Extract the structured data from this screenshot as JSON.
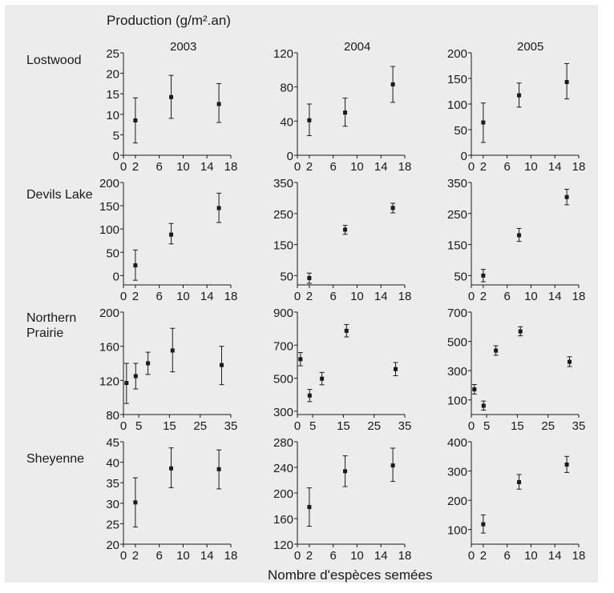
{
  "figure": {
    "ylabel": "Production (g/m².an)",
    "xlabel": "Nombre d'espèces semées",
    "years": [
      "2003",
      "2004",
      "2005"
    ],
    "sites": [
      "Lostwood",
      "Devils Lake",
      "Northern\nPrairie",
      "Sheyenne"
    ],
    "background": "#ececec",
    "point_color": "#1a1a1a"
  },
  "chart_data": [
    {
      "type": "scatter",
      "site": "Lostwood",
      "year": "2003",
      "xlim": [
        0,
        18
      ],
      "xticks": [
        0,
        2,
        6,
        10,
        14,
        18
      ],
      "ylim": [
        0,
        25
      ],
      "yticks": [
        0,
        5,
        10,
        15,
        20,
        25
      ],
      "x": [
        2,
        8,
        16
      ],
      "y": [
        8.5,
        14.2,
        12.5
      ],
      "yerr_low": [
        3,
        9,
        8
      ],
      "yerr_high": [
        14,
        19.5,
        17.5
      ]
    },
    {
      "type": "scatter",
      "site": "Lostwood",
      "year": "2004",
      "xlim": [
        0,
        18
      ],
      "xticks": [
        0,
        2,
        6,
        10,
        14,
        18
      ],
      "ylim": [
        0,
        120
      ],
      "yticks": [
        0,
        40,
        80,
        120
      ],
      "x": [
        2,
        8,
        16
      ],
      "y": [
        41,
        50,
        83
      ],
      "yerr_low": [
        23,
        34,
        62
      ],
      "yerr_high": [
        60,
        67,
        104
      ]
    },
    {
      "type": "scatter",
      "site": "Lostwood",
      "year": "2005",
      "xlim": [
        0,
        18
      ],
      "xticks": [
        0,
        2,
        6,
        10,
        14,
        18
      ],
      "ylim": [
        0,
        200
      ],
      "yticks": [
        0,
        50,
        100,
        150,
        200
      ],
      "x": [
        2,
        8,
        16
      ],
      "y": [
        64,
        117,
        143
      ],
      "yerr_low": [
        25,
        94,
        110
      ],
      "yerr_high": [
        102,
        141,
        179
      ]
    },
    {
      "type": "scatter",
      "site": "Devils Lake",
      "year": "2003",
      "xlim": [
        0,
        18
      ],
      "xticks": [
        0,
        2,
        6,
        10,
        14,
        18
      ],
      "ylim": [
        -20,
        200
      ],
      "yticks": [
        0,
        50,
        100,
        150,
        200
      ],
      "x": [
        2,
        8,
        16
      ],
      "y": [
        22,
        88,
        145
      ],
      "yerr_low": [
        -10,
        68,
        114
      ],
      "yerr_high": [
        55,
        112,
        177
      ]
    },
    {
      "type": "scatter",
      "site": "Devils Lake",
      "year": "2004",
      "xlim": [
        0,
        18
      ],
      "xticks": [
        0,
        2,
        6,
        10,
        14,
        18
      ],
      "ylim": [
        20,
        350
      ],
      "yticks": [
        50,
        150,
        250,
        350
      ],
      "x": [
        2,
        8,
        16
      ],
      "y": [
        42,
        198,
        268
      ],
      "yerr_low": [
        25,
        183,
        252
      ],
      "yerr_high": [
        58,
        212,
        283
      ]
    },
    {
      "type": "scatter",
      "site": "Devils Lake",
      "year": "2005",
      "xlim": [
        0,
        18
      ],
      "xticks": [
        0,
        2,
        6,
        10,
        14,
        18
      ],
      "ylim": [
        20,
        350
      ],
      "yticks": [
        50,
        150,
        250,
        350
      ],
      "x": [
        2,
        8,
        16
      ],
      "y": [
        50,
        180,
        303
      ],
      "yerr_low": [
        30,
        160,
        278
      ],
      "yerr_high": [
        70,
        202,
        328
      ]
    },
    {
      "type": "scatter",
      "site": "Northern Prairie",
      "year": "2003",
      "xlim": [
        0,
        35
      ],
      "xticks": [
        0,
        5,
        15,
        25,
        35
      ],
      "ylim": [
        80,
        200
      ],
      "yticks": [
        80,
        120,
        160,
        200
      ],
      "x": [
        1,
        4,
        8,
        16,
        32
      ],
      "y": [
        117,
        125,
        140,
        155,
        138
      ],
      "yerr_low": [
        93,
        110,
        127,
        130,
        115
      ],
      "yerr_high": [
        140,
        140,
        153,
        181,
        160
      ]
    },
    {
      "type": "scatter",
      "site": "Northern Prairie",
      "year": "2004",
      "xlim": [
        0,
        35
      ],
      "xticks": [
        0,
        5,
        15,
        25,
        35
      ],
      "ylim": [
        280,
        900
      ],
      "yticks": [
        300,
        500,
        700,
        900
      ],
      "x": [
        1,
        4,
        8,
        16,
        32
      ],
      "y": [
        615,
        395,
        497,
        787,
        555
      ],
      "yerr_low": [
        575,
        358,
        460,
        750,
        515
      ],
      "yerr_high": [
        655,
        432,
        535,
        825,
        595
      ]
    },
    {
      "type": "scatter",
      "site": "Northern Prairie",
      "year": "2005",
      "xlim": [
        0,
        35
      ],
      "xticks": [
        0,
        5,
        15,
        25,
        35
      ],
      "ylim": [
        0,
        700
      ],
      "yticks": [
        100,
        300,
        500,
        700
      ],
      "x": [
        1,
        4,
        8,
        16,
        32
      ],
      "y": [
        172,
        60,
        437,
        568,
        360
      ],
      "yerr_low": [
        140,
        30,
        405,
        538,
        328
      ],
      "yerr_high": [
        205,
        92,
        470,
        600,
        395
      ]
    },
    {
      "type": "scatter",
      "site": "Sheyenne",
      "year": "2003",
      "xlim": [
        0,
        18
      ],
      "xticks": [
        0,
        2,
        6,
        10,
        14,
        18
      ],
      "ylim": [
        20,
        45
      ],
      "yticks": [
        20,
        25,
        30,
        35,
        40,
        45
      ],
      "x": [
        2,
        8,
        16
      ],
      "y": [
        30.2,
        38.5,
        38.3
      ],
      "yerr_low": [
        24.2,
        33.8,
        33.5
      ],
      "yerr_high": [
        36.2,
        43.5,
        43
      ]
    },
    {
      "type": "scatter",
      "site": "Sheyenne",
      "year": "2004",
      "xlim": [
        0,
        18
      ],
      "xticks": [
        0,
        2,
        6,
        10,
        14,
        18
      ],
      "ylim": [
        120,
        280
      ],
      "yticks": [
        120,
        160,
        200,
        240,
        280
      ],
      "x": [
        2,
        8,
        16
      ],
      "y": [
        178,
        234,
        243
      ],
      "yerr_low": [
        148,
        210,
        218
      ],
      "yerr_high": [
        208,
        258,
        270
      ]
    },
    {
      "type": "scatter",
      "site": "Sheyenne",
      "year": "2005",
      "xlim": [
        0,
        18
      ],
      "xticks": [
        0,
        2,
        6,
        10,
        14,
        18
      ],
      "ylim": [
        50,
        400
      ],
      "yticks": [
        100,
        200,
        300,
        400
      ],
      "x": [
        2,
        8,
        16
      ],
      "y": [
        118,
        262,
        322
      ],
      "yerr_low": [
        88,
        238,
        295
      ],
      "yerr_high": [
        150,
        288,
        350
      ]
    }
  ]
}
